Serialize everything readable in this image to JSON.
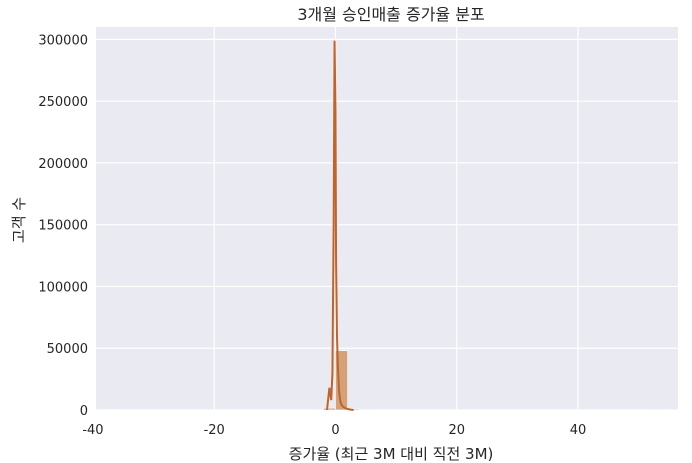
{
  "chart_data": {
    "type": "bar",
    "title": "3개월 승인매출 증가율 분포",
    "xlabel": "증가율 (최근 3M 대비 직전 3M)",
    "ylabel": "고객 수",
    "xlim": [
      -39.5,
      56.5
    ],
    "ylim": [
      0,
      310000
    ],
    "xticks": [
      -40,
      -20,
      0,
      20,
      40
    ],
    "yticks": [
      0,
      50000,
      100000,
      150000,
      200000,
      250000,
      300000
    ],
    "grid": true,
    "colors": {
      "bar": "#d4a27a",
      "bar_edge": "#ffffff",
      "kde": "#c0642a",
      "background": "#eaeaf2",
      "grid": "#ffffff"
    },
    "histogram": {
      "bins": [
        {
          "x0": -38.0,
          "x1": -36.0,
          "count": 200
        },
        {
          "x0": -2.0,
          "x1": 0.0,
          "count": 1500
        },
        {
          "x0": 0.0,
          "x1": 2.0,
          "count": 48000
        },
        {
          "x0": 2.0,
          "x1": 4.0,
          "count": 800
        },
        {
          "x0": 52.0,
          "x1": 54.0,
          "count": 100
        }
      ]
    },
    "kde": {
      "x": [
        -1.4,
        -1.0,
        -0.7,
        -0.5,
        -0.3,
        -0.15,
        0.0,
        0.1,
        0.25,
        0.4,
        0.6,
        0.8,
        1.0,
        1.3,
        1.6,
        2.0,
        2.5,
        3.0
      ],
      "y": [
        0,
        18000,
        8000,
        30000,
        150000,
        299000,
        240000,
        120000,
        60000,
        35000,
        15000,
        7000,
        4000,
        2500,
        1500,
        800,
        300,
        0
      ]
    }
  }
}
